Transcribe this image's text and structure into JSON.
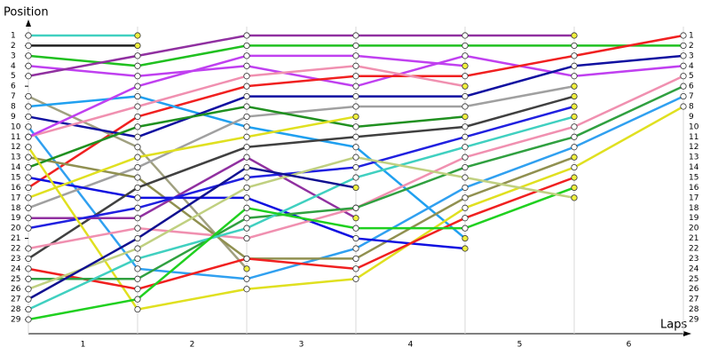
{
  "chart_data": {
    "type": "line",
    "y_label": "Position",
    "x_label": "Laps",
    "categories": [
      "1",
      "2",
      "3",
      "4",
      "5",
      "6"
    ],
    "x": [
      0,
      1,
      2,
      3,
      4,
      5,
      6
    ],
    "xlim": [
      0,
      6
    ],
    "ylim": [
      1,
      29
    ],
    "y_inverted": true,
    "yticks": [
      1,
      2,
      3,
      4,
      5,
      6,
      7,
      8,
      9,
      10,
      11,
      12,
      13,
      14,
      15,
      16,
      17,
      18,
      19,
      20,
      21,
      22,
      23,
      24,
      25,
      26,
      27,
      28,
      29
    ],
    "grid": true,
    "series": [
      {
        "color": "#40d0c0",
        "values": [
          1,
          1,
          null,
          null,
          null,
          null,
          null
        ]
      },
      {
        "color": "#202020",
        "values": [
          2,
          2,
          null,
          null,
          null,
          null,
          null
        ]
      },
      {
        "color": "#20c020",
        "values": [
          3,
          4,
          2,
          2,
          2,
          2,
          2
        ]
      },
      {
        "color": "#c040f0",
        "values": [
          4,
          5,
          4,
          6,
          3,
          5,
          4
        ]
      },
      {
        "color": "#9030a0",
        "values": [
          5,
          3,
          1,
          1,
          1,
          1,
          null
        ]
      },
      {
        "color": "#f02020",
        "values": [
          16,
          9,
          6,
          5,
          5,
          3,
          1
        ]
      },
      {
        "color": "#a0a080",
        "values": [
          7,
          12,
          24,
          null,
          null,
          null,
          null
        ]
      },
      {
        "color": "#20a0f0",
        "values": [
          8,
          7,
          10,
          12,
          21,
          null,
          null
        ]
      },
      {
        "color": "#1010a0",
        "values": [
          9,
          11,
          7,
          7,
          7,
          4,
          3
        ]
      },
      {
        "color": "#30a0f0",
        "values": [
          10,
          24,
          25,
          22,
          16,
          12,
          7
        ]
      },
      {
        "color": "#f090b0",
        "values": [
          11,
          8,
          5,
          4,
          6,
          null,
          null
        ]
      },
      {
        "color": "#c040f0",
        "values": [
          11,
          6,
          3,
          3,
          4,
          null,
          null
        ]
      },
      {
        "color": "#a0a0a0",
        "values": [
          18,
          14,
          9,
          8,
          8,
          6,
          null
        ]
      },
      {
        "color": "#909050",
        "values": [
          13,
          15,
          23,
          23,
          17,
          13,
          null
        ]
      },
      {
        "color": "#209020",
        "values": [
          14,
          10,
          8,
          10,
          9,
          null,
          null
        ]
      },
      {
        "color": "#1010e0",
        "values": [
          15,
          17,
          17,
          21,
          22,
          null,
          null
        ]
      },
      {
        "color": "#e0e020",
        "values": [
          17,
          13,
          11,
          9,
          null,
          null,
          null
        ]
      },
      {
        "color": "#404040",
        "values": [
          23,
          16,
          12,
          11,
          10,
          7,
          null
        ]
      },
      {
        "color": "#9030a0",
        "values": [
          19,
          19,
          13,
          19,
          null,
          null,
          null
        ]
      },
      {
        "color": "#2020e0",
        "values": [
          20,
          18,
          15,
          14,
          11,
          8,
          null
        ]
      },
      {
        "color": "#e0e020",
        "values": [
          12,
          28,
          26,
          25,
          18,
          14,
          8
        ]
      },
      {
        "color": "#f090b0",
        "values": [
          22,
          20,
          21,
          18,
          13,
          10,
          5
        ]
      },
      {
        "color": "#f02020",
        "values": [
          24,
          26,
          23,
          24,
          19,
          15,
          null
        ]
      },
      {
        "color": "#30a040",
        "values": [
          25,
          25,
          19,
          18,
          14,
          11,
          6
        ]
      },
      {
        "color": "#40d0c0",
        "values": [
          28,
          23,
          20,
          15,
          12,
          9,
          null
        ]
      },
      {
        "color": "#20d020",
        "values": [
          29,
          27,
          18,
          20,
          20,
          16,
          null
        ]
      },
      {
        "color": "#c0d080",
        "values": [
          26,
          22,
          16,
          13,
          15,
          17,
          null
        ]
      },
      {
        "color": "#101090",
        "values": [
          27,
          21,
          14,
          16,
          null,
          null,
          null
        ]
      }
    ]
  }
}
